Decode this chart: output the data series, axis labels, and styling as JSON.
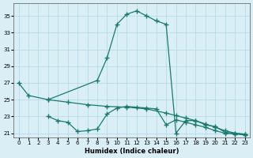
{
  "line1_x": [
    0,
    1,
    3,
    8,
    9,
    10,
    11,
    12,
    13,
    14,
    15,
    16,
    17,
    18,
    19,
    20,
    21,
    22,
    23
  ],
  "line1_y": [
    27.0,
    25.5,
    25.0,
    27.3,
    30.0,
    34.0,
    35.2,
    35.6,
    35.0,
    34.4,
    34.0,
    21.0,
    22.5,
    22.5,
    22.0,
    21.8,
    21.1,
    21.0,
    20.9
  ],
  "line2_x": [
    3,
    4,
    5,
    6,
    7,
    8,
    9,
    10,
    11,
    12,
    13,
    14,
    15,
    16,
    17,
    18,
    19,
    20,
    21,
    22,
    23
  ],
  "line2_y": [
    23.0,
    22.5,
    22.3,
    21.2,
    21.3,
    21.5,
    23.3,
    24.0,
    24.2,
    24.1,
    24.0,
    23.9,
    22.0,
    22.6,
    22.3,
    22.0,
    21.7,
    21.3,
    21.0,
    20.9,
    20.8
  ],
  "line3_x": [
    3,
    5,
    7,
    9,
    11,
    13,
    15,
    16,
    17,
    18,
    19,
    20,
    21,
    22,
    23
  ],
  "line3_y": [
    25.0,
    24.7,
    24.4,
    24.2,
    24.1,
    23.9,
    23.4,
    23.1,
    22.8,
    22.5,
    22.1,
    21.7,
    21.3,
    21.0,
    20.85
  ],
  "line_color": "#1a7a6e",
  "bg_color": "#d9eff5",
  "grid_color": "#b0d8e8",
  "xlabel": "Humidex (Indice chaleur)",
  "ylabel_ticks": [
    21,
    23,
    25,
    27,
    29,
    31,
    33,
    35
  ],
  "xlim": [
    -0.5,
    23.5
  ],
  "ylim": [
    20.5,
    36.5
  ],
  "xticks": [
    0,
    1,
    2,
    3,
    4,
    5,
    6,
    7,
    8,
    9,
    10,
    11,
    12,
    13,
    14,
    15,
    16,
    17,
    18,
    19,
    20,
    21,
    22,
    23
  ]
}
